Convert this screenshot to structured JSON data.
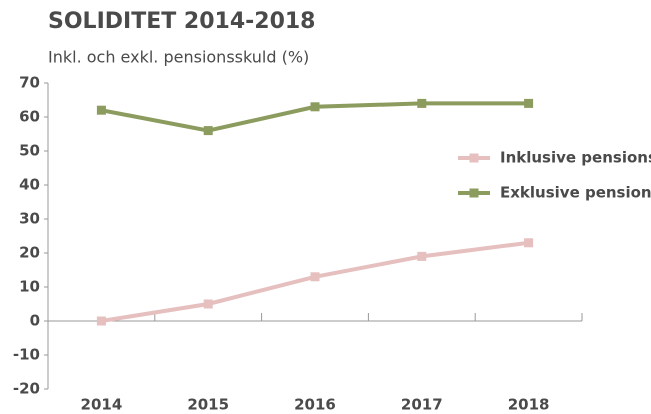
{
  "chart_data": {
    "type": "line",
    "title": "SOLIDITET 2014-2018",
    "subtitle": "Inkl. och exkl. pensionsskuld (%)",
    "categories": [
      "2014",
      "2015",
      "2016",
      "2017",
      "2018"
    ],
    "series": [
      {
        "name": "Inklusive pensionsskuld",
        "color": "#e6bfbf",
        "values": [
          0,
          5,
          13,
          19,
          23
        ]
      },
      {
        "name": "Exklusive pensionsskuld",
        "color": "#8c9b5e",
        "values": [
          62,
          56,
          63,
          64,
          64
        ]
      }
    ],
    "ylim": [
      -20,
      70
    ],
    "yticks": [
      -20,
      -10,
      0,
      10,
      20,
      30,
      40,
      50,
      60,
      70
    ],
    "grid": false,
    "legend": "right"
  }
}
